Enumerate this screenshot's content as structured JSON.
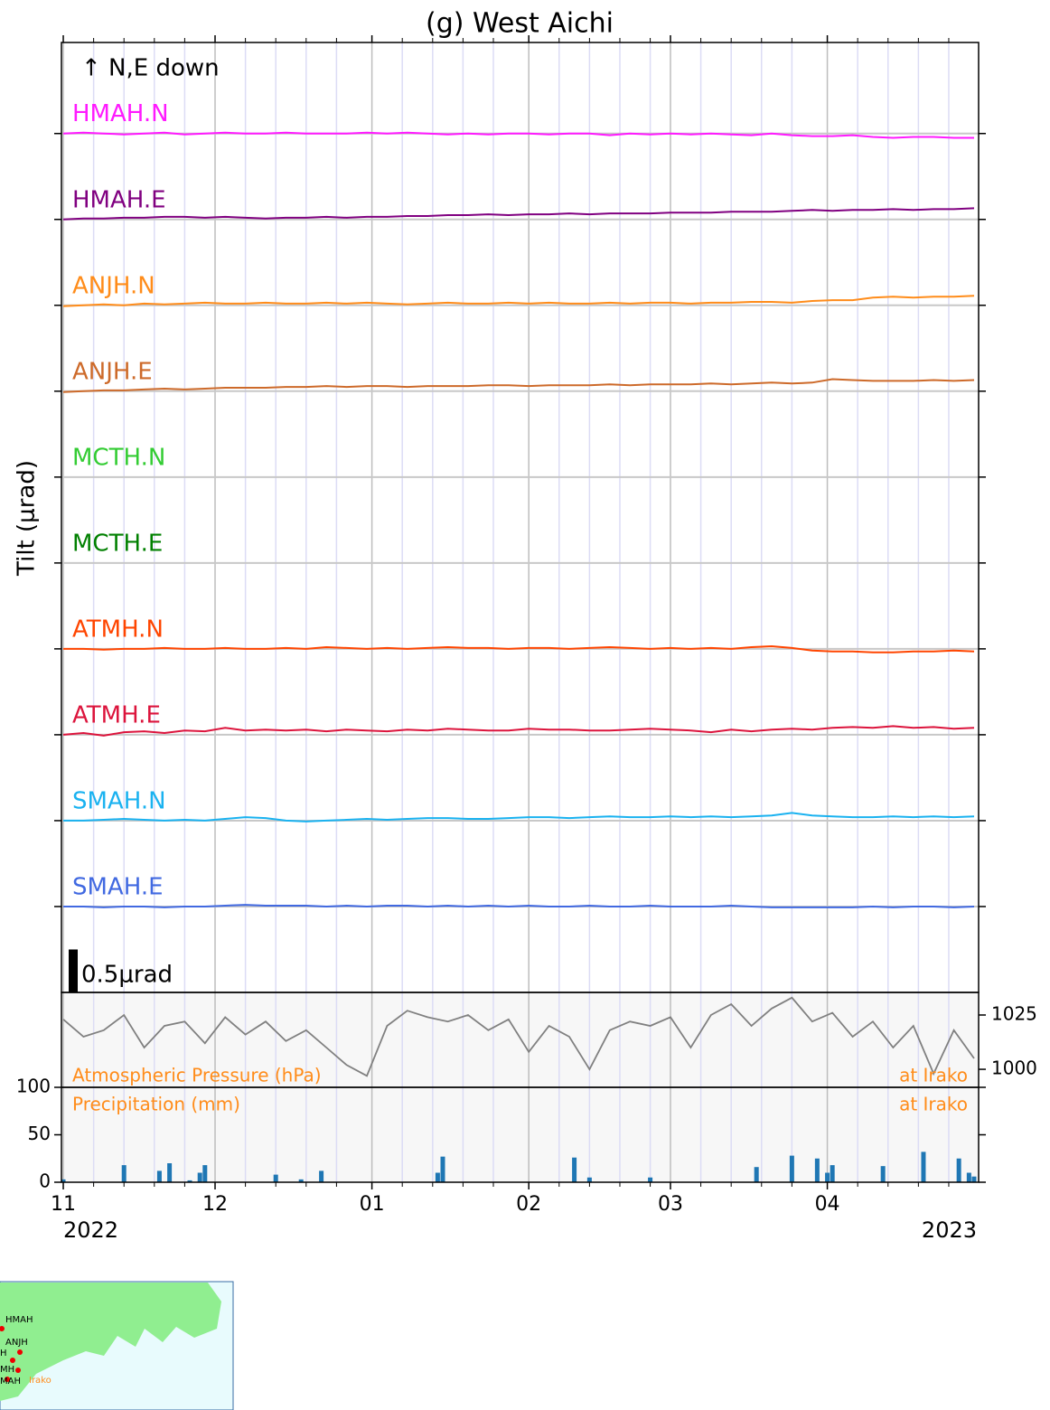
{
  "chart_data": [
    {
      "type": "line",
      "title": "(g) West Aichi",
      "ylabel": "Tilt (μrad)",
      "annotation": "↑ N,E down",
      "scale_bar": {
        "value": 0.5,
        "label": "0.5μrad"
      },
      "xlim": [
        -0.36,
        180.9
      ],
      "ylim": [
        0,
        11.06
      ],
      "yticks": [
        1,
        2,
        3,
        4,
        5,
        6,
        7,
        8,
        9,
        10
      ],
      "grid": true,
      "xticks": [
        {
          "value": 0,
          "label": "11"
        },
        {
          "value": 30,
          "label": "12"
        },
        {
          "value": 61,
          "label": "01"
        },
        {
          "value": 92,
          "label": "02"
        },
        {
          "value": 120,
          "label": "03"
        },
        {
          "value": 151,
          "label": "04"
        }
      ],
      "xminorticks": [
        6,
        12,
        18,
        24,
        36,
        42,
        48,
        54,
        67,
        73,
        79,
        85,
        98,
        104,
        110,
        116,
        126,
        132,
        138,
        144,
        157,
        163,
        169,
        175
      ],
      "x_year_labels": [
        "2022",
        "2023"
      ],
      "x": [
        0,
        4,
        8,
        12,
        16,
        20,
        24,
        28,
        32,
        36,
        40,
        44,
        48,
        52,
        56,
        60,
        64,
        68,
        72,
        76,
        80,
        84,
        88,
        92,
        96,
        100,
        104,
        108,
        112,
        116,
        120,
        124,
        128,
        132,
        136,
        140,
        144,
        148,
        152,
        156,
        160,
        164,
        168,
        172,
        176,
        180
      ],
      "series": [
        {
          "name": "HMAH.N",
          "color": "#ff1aff",
          "values": [
            10.0,
            10.01,
            10.0,
            9.99,
            10.0,
            10.01,
            9.99,
            10.0,
            10.01,
            10.0,
            10.0,
            10.01,
            10.0,
            10.0,
            10.0,
            10.01,
            10.0,
            10.01,
            10.0,
            9.99,
            10.0,
            9.99,
            10.0,
            10.0,
            9.99,
            10.0,
            10.0,
            9.98,
            10.0,
            9.99,
            10.0,
            9.99,
            10.0,
            9.99,
            9.98,
            10.0,
            9.98,
            9.97,
            9.97,
            9.98,
            9.96,
            9.95,
            9.96,
            9.96,
            9.95,
            9.95
          ]
        },
        {
          "name": "HMAH.E",
          "color": "#800080",
          "values": [
            9.0,
            9.01,
            9.01,
            9.02,
            9.02,
            9.03,
            9.03,
            9.02,
            9.03,
            9.02,
            9.01,
            9.02,
            9.02,
            9.03,
            9.02,
            9.03,
            9.03,
            9.04,
            9.04,
            9.05,
            9.05,
            9.06,
            9.05,
            9.06,
            9.06,
            9.07,
            9.06,
            9.07,
            9.07,
            9.07,
            9.08,
            9.08,
            9.08,
            9.09,
            9.09,
            9.09,
            9.1,
            9.11,
            9.1,
            9.11,
            9.11,
            9.12,
            9.11,
            9.12,
            9.12,
            9.13
          ]
        },
        {
          "name": "ANJH.N",
          "color": "#ff8c1a",
          "values": [
            7.99,
            8.0,
            8.01,
            8.0,
            8.02,
            8.01,
            8.02,
            8.03,
            8.02,
            8.02,
            8.03,
            8.02,
            8.02,
            8.03,
            8.02,
            8.03,
            8.02,
            8.01,
            8.02,
            8.03,
            8.02,
            8.02,
            8.03,
            8.02,
            8.03,
            8.02,
            8.02,
            8.03,
            8.02,
            8.03,
            8.03,
            8.02,
            8.03,
            8.03,
            8.04,
            8.04,
            8.03,
            8.05,
            8.06,
            8.06,
            8.09,
            8.1,
            8.09,
            8.1,
            8.1,
            8.11
          ]
        },
        {
          "name": "ANJH.E",
          "color": "#cd6a2a",
          "values": [
            6.99,
            7.0,
            7.01,
            7.01,
            7.02,
            7.03,
            7.02,
            7.03,
            7.04,
            7.04,
            7.04,
            7.05,
            7.05,
            7.06,
            7.05,
            7.06,
            7.06,
            7.05,
            7.06,
            7.06,
            7.06,
            7.07,
            7.07,
            7.06,
            7.07,
            7.07,
            7.07,
            7.08,
            7.07,
            7.08,
            7.08,
            7.08,
            7.09,
            7.08,
            7.09,
            7.1,
            7.09,
            7.1,
            7.14,
            7.13,
            7.12,
            7.12,
            7.12,
            7.13,
            7.12,
            7.13
          ]
        },
        {
          "name": "MCTH.N",
          "color": "#33cc33",
          "values": [
            null,
            null,
            null,
            null,
            null,
            null,
            null,
            null,
            null,
            null,
            null,
            null,
            null,
            null,
            null,
            null,
            null,
            null,
            null,
            null,
            null,
            null,
            null,
            null,
            null,
            null,
            null,
            null,
            null,
            null,
            null,
            null,
            null,
            null,
            null,
            null,
            null,
            null,
            null,
            null,
            null,
            null,
            null,
            null,
            null,
            null
          ]
        },
        {
          "name": "MCTH.E",
          "color": "#008000",
          "values": [
            null,
            null,
            null,
            null,
            null,
            null,
            null,
            null,
            null,
            null,
            null,
            null,
            null,
            null,
            null,
            null,
            null,
            null,
            null,
            null,
            null,
            null,
            null,
            null,
            null,
            null,
            null,
            null,
            null,
            null,
            null,
            null,
            null,
            null,
            null,
            null,
            null,
            null,
            null,
            null,
            null,
            null,
            null,
            null,
            null,
            null
          ]
        },
        {
          "name": "ATMH.N",
          "color": "#ff4500",
          "values": [
            4.0,
            4.0,
            3.99,
            4.0,
            4.0,
            4.01,
            4.0,
            4.0,
            4.01,
            4.0,
            4.0,
            4.01,
            4.0,
            4.02,
            4.01,
            4.0,
            4.01,
            4.0,
            4.01,
            4.02,
            4.01,
            4.01,
            4.0,
            4.01,
            4.01,
            4.0,
            4.01,
            4.02,
            4.01,
            4.0,
            4.01,
            4.0,
            4.01,
            4.0,
            4.02,
            4.03,
            4.01,
            3.98,
            3.97,
            3.97,
            3.96,
            3.96,
            3.97,
            3.97,
            3.98,
            3.97
          ]
        },
        {
          "name": "ATMH.E",
          "color": "#dc143c",
          "values": [
            3.0,
            3.02,
            2.99,
            3.03,
            3.04,
            3.02,
            3.05,
            3.04,
            3.08,
            3.05,
            3.06,
            3.05,
            3.06,
            3.04,
            3.06,
            3.05,
            3.04,
            3.06,
            3.05,
            3.07,
            3.06,
            3.05,
            3.05,
            3.07,
            3.06,
            3.06,
            3.05,
            3.05,
            3.06,
            3.07,
            3.06,
            3.05,
            3.03,
            3.06,
            3.04,
            3.06,
            3.07,
            3.06,
            3.08,
            3.09,
            3.08,
            3.1,
            3.08,
            3.09,
            3.07,
            3.08
          ]
        },
        {
          "name": "SMAH.N",
          "color": "#1ab2f0",
          "values": [
            2.0,
            2.0,
            2.01,
            2.02,
            2.01,
            2.0,
            2.01,
            2.0,
            2.02,
            2.04,
            2.03,
            2.0,
            1.99,
            2.0,
            2.01,
            2.02,
            2.01,
            2.02,
            2.03,
            2.03,
            2.02,
            2.02,
            2.03,
            2.04,
            2.04,
            2.03,
            2.04,
            2.05,
            2.04,
            2.04,
            2.05,
            2.04,
            2.05,
            2.04,
            2.05,
            2.06,
            2.09,
            2.06,
            2.05,
            2.04,
            2.04,
            2.05,
            2.04,
            2.05,
            2.04,
            2.05
          ]
        },
        {
          "name": "SMAH.E",
          "color": "#4169e1",
          "values": [
            1.0,
            1.0,
            0.99,
            1.0,
            1.0,
            0.99,
            1.0,
            1.0,
            1.01,
            1.02,
            1.01,
            1.01,
            1.01,
            1.0,
            1.01,
            1.0,
            1.01,
            1.01,
            1.0,
            1.01,
            1.0,
            1.01,
            1.0,
            1.01,
            1.0,
            1.0,
            1.01,
            1.0,
            1.0,
            1.01,
            1.0,
            1.0,
            1.0,
            1.01,
            1.0,
            0.99,
            0.99,
            0.99,
            0.99,
            0.99,
            1.0,
            0.99,
            1.0,
            1.0,
            0.99,
            1.0
          ]
        }
      ]
    },
    {
      "type": "line",
      "label": "Atmospheric Pressure (hPa)",
      "station_label": "at Irako",
      "color": "#808080",
      "xlim": [
        -0.36,
        180.9
      ],
      "y2lim": [
        991.7,
        1035.4
      ],
      "y2ticks": [
        1000,
        1025
      ],
      "x": [
        0,
        4,
        8,
        12,
        16,
        20,
        24,
        28,
        32,
        36,
        40,
        44,
        48,
        52,
        56,
        60,
        64,
        68,
        72,
        76,
        80,
        84,
        88,
        92,
        96,
        100,
        104,
        108,
        112,
        116,
        120,
        124,
        128,
        132,
        136,
        140,
        144,
        148,
        152,
        156,
        160,
        164,
        168,
        172,
        176,
        180
      ],
      "values": [
        1023,
        1015,
        1018,
        1025,
        1010,
        1020,
        1022,
        1012,
        1024,
        1016,
        1022,
        1013,
        1018,
        1010,
        1002,
        997,
        1020,
        1027,
        1024,
        1022,
        1025,
        1018,
        1023,
        1008,
        1020,
        1015,
        1000,
        1018,
        1022,
        1020,
        1024,
        1010,
        1025,
        1030,
        1020,
        1028,
        1033,
        1022,
        1026,
        1015,
        1022,
        1010,
        1020,
        998,
        1018,
        1005
      ]
    },
    {
      "type": "bar",
      "label": "Precipitation (mm)",
      "station_label": "at Irako",
      "color": "#1f77b4",
      "xlim": [
        -0.36,
        180.9
      ],
      "ylim": [
        0,
        100
      ],
      "yticks": [
        0,
        50,
        100
      ],
      "x": [
        0,
        12,
        19,
        21,
        25,
        27,
        28,
        42,
        47,
        51,
        74,
        75,
        101,
        104,
        116,
        137,
        144,
        149,
        151,
        152,
        162,
        170,
        177,
        179,
        180
      ],
      "values": [
        3,
        18,
        12,
        20,
        2,
        10,
        18,
        8,
        3,
        12,
        10,
        27,
        26,
        5,
        5,
        16,
        28,
        25,
        10,
        18,
        17,
        32,
        25,
        10,
        6
      ]
    }
  ],
  "map": {
    "labels": [
      "HMAH",
      "ANJH",
      "H",
      "MH",
      "MAH",
      "Irako"
    ]
  }
}
